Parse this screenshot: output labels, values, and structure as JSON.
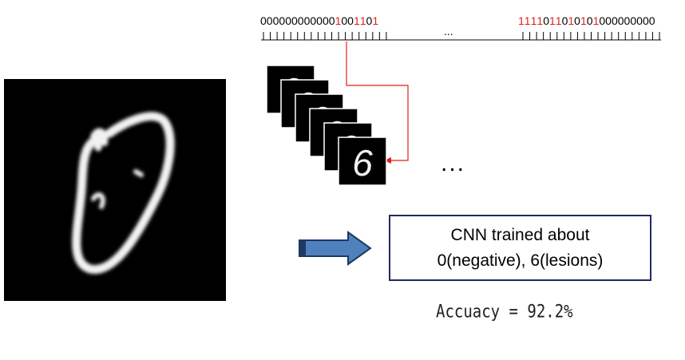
{
  "bit_sequence_left": [
    {
      "t": "0",
      "c": "#000000"
    },
    {
      "t": "0",
      "c": "#000000"
    },
    {
      "t": "0",
      "c": "#000000"
    },
    {
      "t": "0",
      "c": "#000000"
    },
    {
      "t": "0",
      "c": "#000000"
    },
    {
      "t": "0",
      "c": "#000000"
    },
    {
      "t": "0",
      "c": "#000000"
    },
    {
      "t": "0",
      "c": "#000000"
    },
    {
      "t": "0",
      "c": "#000000"
    },
    {
      "t": "0",
      "c": "#000000"
    },
    {
      "t": "0",
      "c": "#000000"
    },
    {
      "t": "0",
      "c": "#000000"
    },
    {
      "t": "1",
      "c": "#e0201c"
    },
    {
      "t": "0",
      "c": "#000000"
    },
    {
      "t": "0",
      "c": "#000000"
    },
    {
      "t": "1",
      "c": "#e0201c"
    },
    {
      "t": "1",
      "c": "#e0201c"
    },
    {
      "t": "0",
      "c": "#000000"
    },
    {
      "t": "1",
      "c": "#e0201c"
    }
  ],
  "bit_sequence_right": [
    {
      "t": "1",
      "c": "#e0201c"
    },
    {
      "t": "1",
      "c": "#e0201c"
    },
    {
      "t": "1",
      "c": "#e0201c"
    },
    {
      "t": "1",
      "c": "#e0201c"
    },
    {
      "t": "0",
      "c": "#000000"
    },
    {
      "t": "1",
      "c": "#e0201c"
    },
    {
      "t": "1",
      "c": "#e0201c"
    },
    {
      "t": "0",
      "c": "#000000"
    },
    {
      "t": "1",
      "c": "#e0201c"
    },
    {
      "t": "0",
      "c": "#000000"
    },
    {
      "t": "1",
      "c": "#e0201c"
    },
    {
      "t": "0",
      "c": "#000000"
    },
    {
      "t": "1",
      "c": "#e0201c"
    },
    {
      "t": "0",
      "c": "#000000"
    },
    {
      "t": "0",
      "c": "#000000"
    },
    {
      "t": "0",
      "c": "#000000"
    },
    {
      "t": "0",
      "c": "#000000"
    },
    {
      "t": "0",
      "c": "#000000"
    },
    {
      "t": "0",
      "c": "#000000"
    },
    {
      "t": "0",
      "c": "#000000"
    },
    {
      "t": "0",
      "c": "#000000"
    },
    {
      "t": "0",
      "c": "#000000"
    }
  ],
  "ellipsis_small": "...",
  "ellipsis_big": "...",
  "stack_digit": "6",
  "cnn_box": {
    "line1": "CNN trained about",
    "line2": "0(negative), 6(lesions)",
    "border_color": "#1f2a64"
  },
  "accuracy_text": "Accuacy = 92.2%",
  "colors": {
    "highlight_red": "#e0201c",
    "arrow_fill": "#4f81bd",
    "arrow_stroke": "#1f3864"
  }
}
